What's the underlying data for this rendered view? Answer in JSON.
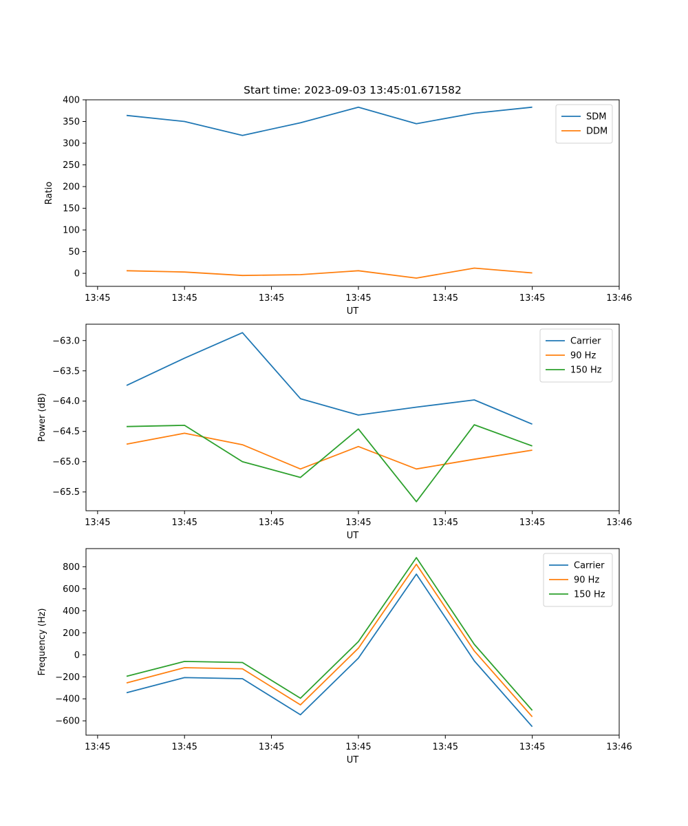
{
  "chart_data": [
    {
      "type": "line",
      "title": "Start time: 2023-09-03 13:45:01.671582",
      "xlabel": "UT",
      "ylabel": "Ratio",
      "x": [
        1,
        2,
        3,
        4,
        5,
        6,
        7,
        8
      ],
      "xlim": [
        0.3,
        9.5
      ],
      "x_ticks": [
        0.5,
        2,
        3.5,
        5,
        6.5,
        8,
        9.5
      ],
      "x_tick_labels": [
        "13:45",
        "13:45",
        "13:45",
        "13:45",
        "13:45",
        "13:45",
        "13:46"
      ],
      "ylim": [
        -30,
        400
      ],
      "y_ticks": [
        0,
        50,
        100,
        150,
        200,
        250,
        300,
        350,
        400
      ],
      "y_tick_labels": [
        "0",
        "50",
        "100",
        "150",
        "200",
        "250",
        "300",
        "350",
        "400"
      ],
      "legend_position": "top-right",
      "series": [
        {
          "name": "SDM",
          "color": "#1f77b4",
          "values": [
            364,
            350,
            318,
            347,
            383,
            345,
            369,
            383
          ]
        },
        {
          "name": "DDM",
          "color": "#ff7f0e",
          "values": [
            6,
            3,
            -5,
            -3,
            6,
            -11,
            12,
            1
          ]
        }
      ]
    },
    {
      "type": "line",
      "title": "",
      "xlabel": "UT",
      "ylabel": "Power (dB)",
      "x": [
        1,
        2,
        3,
        4,
        5,
        6,
        7,
        8
      ],
      "xlim": [
        0.3,
        9.5
      ],
      "x_ticks": [
        0.5,
        2,
        3.5,
        5,
        6.5,
        8,
        9.5
      ],
      "x_tick_labels": [
        "13:45",
        "13:45",
        "13:45",
        "13:45",
        "13:45",
        "13:45",
        "13:46"
      ],
      "ylim": [
        -65.81,
        -62.73
      ],
      "y_ticks": [
        -65.5,
        -65.0,
        -64.5,
        -64.0,
        -63.5,
        -63.0
      ],
      "y_tick_labels": [
        "−65.5",
        "−65.0",
        "−64.5",
        "−64.0",
        "−63.5",
        "−63.0"
      ],
      "legend_position": "top-right",
      "series": [
        {
          "name": "Carrier",
          "color": "#1f77b4",
          "values": [
            -63.74,
            -63.29,
            -62.87,
            -63.96,
            -64.23,
            -64.1,
            -63.98,
            -64.38
          ]
        },
        {
          "name": "90 Hz",
          "color": "#ff7f0e",
          "values": [
            -64.71,
            -64.53,
            -64.72,
            -65.12,
            -64.75,
            -65.12,
            -64.96,
            -64.81
          ]
        },
        {
          "name": "150 Hz",
          "color": "#2ca02c",
          "values": [
            -64.42,
            -64.4,
            -65.0,
            -65.26,
            -64.46,
            -65.66,
            -64.39,
            -64.74
          ]
        }
      ]
    },
    {
      "type": "line",
      "title": "",
      "xlabel": "UT",
      "ylabel": "Frequency (Hz)",
      "x": [
        1,
        2,
        3,
        4,
        5,
        6,
        7,
        8
      ],
      "xlim": [
        0.3,
        9.5
      ],
      "x_ticks": [
        0.5,
        2,
        3.5,
        5,
        6.5,
        8,
        9.5
      ],
      "x_tick_labels": [
        "13:45",
        "13:45",
        "13:45",
        "13:45",
        "13:45",
        "13:45",
        "13:46"
      ],
      "ylim": [
        -730,
        965
      ],
      "y_ticks": [
        -600,
        -400,
        -200,
        0,
        200,
        400,
        600,
        800
      ],
      "y_tick_labels": [
        "−600",
        "−400",
        "−200",
        "0",
        "200",
        "400",
        "600",
        "800"
      ],
      "legend_position": "top-right",
      "series": [
        {
          "name": "Carrier",
          "color": "#1f77b4",
          "values": [
            -345,
            -207,
            -217,
            -545,
            -30,
            733,
            -55,
            -653
          ]
        },
        {
          "name": "90 Hz",
          "color": "#ff7f0e",
          "values": [
            -255,
            -117,
            -127,
            -455,
            60,
            823,
            35,
            -563
          ]
        },
        {
          "name": "150 Hz",
          "color": "#2ca02c",
          "values": [
            -195,
            -60,
            -70,
            -395,
            120,
            883,
            95,
            -505
          ]
        }
      ]
    }
  ]
}
